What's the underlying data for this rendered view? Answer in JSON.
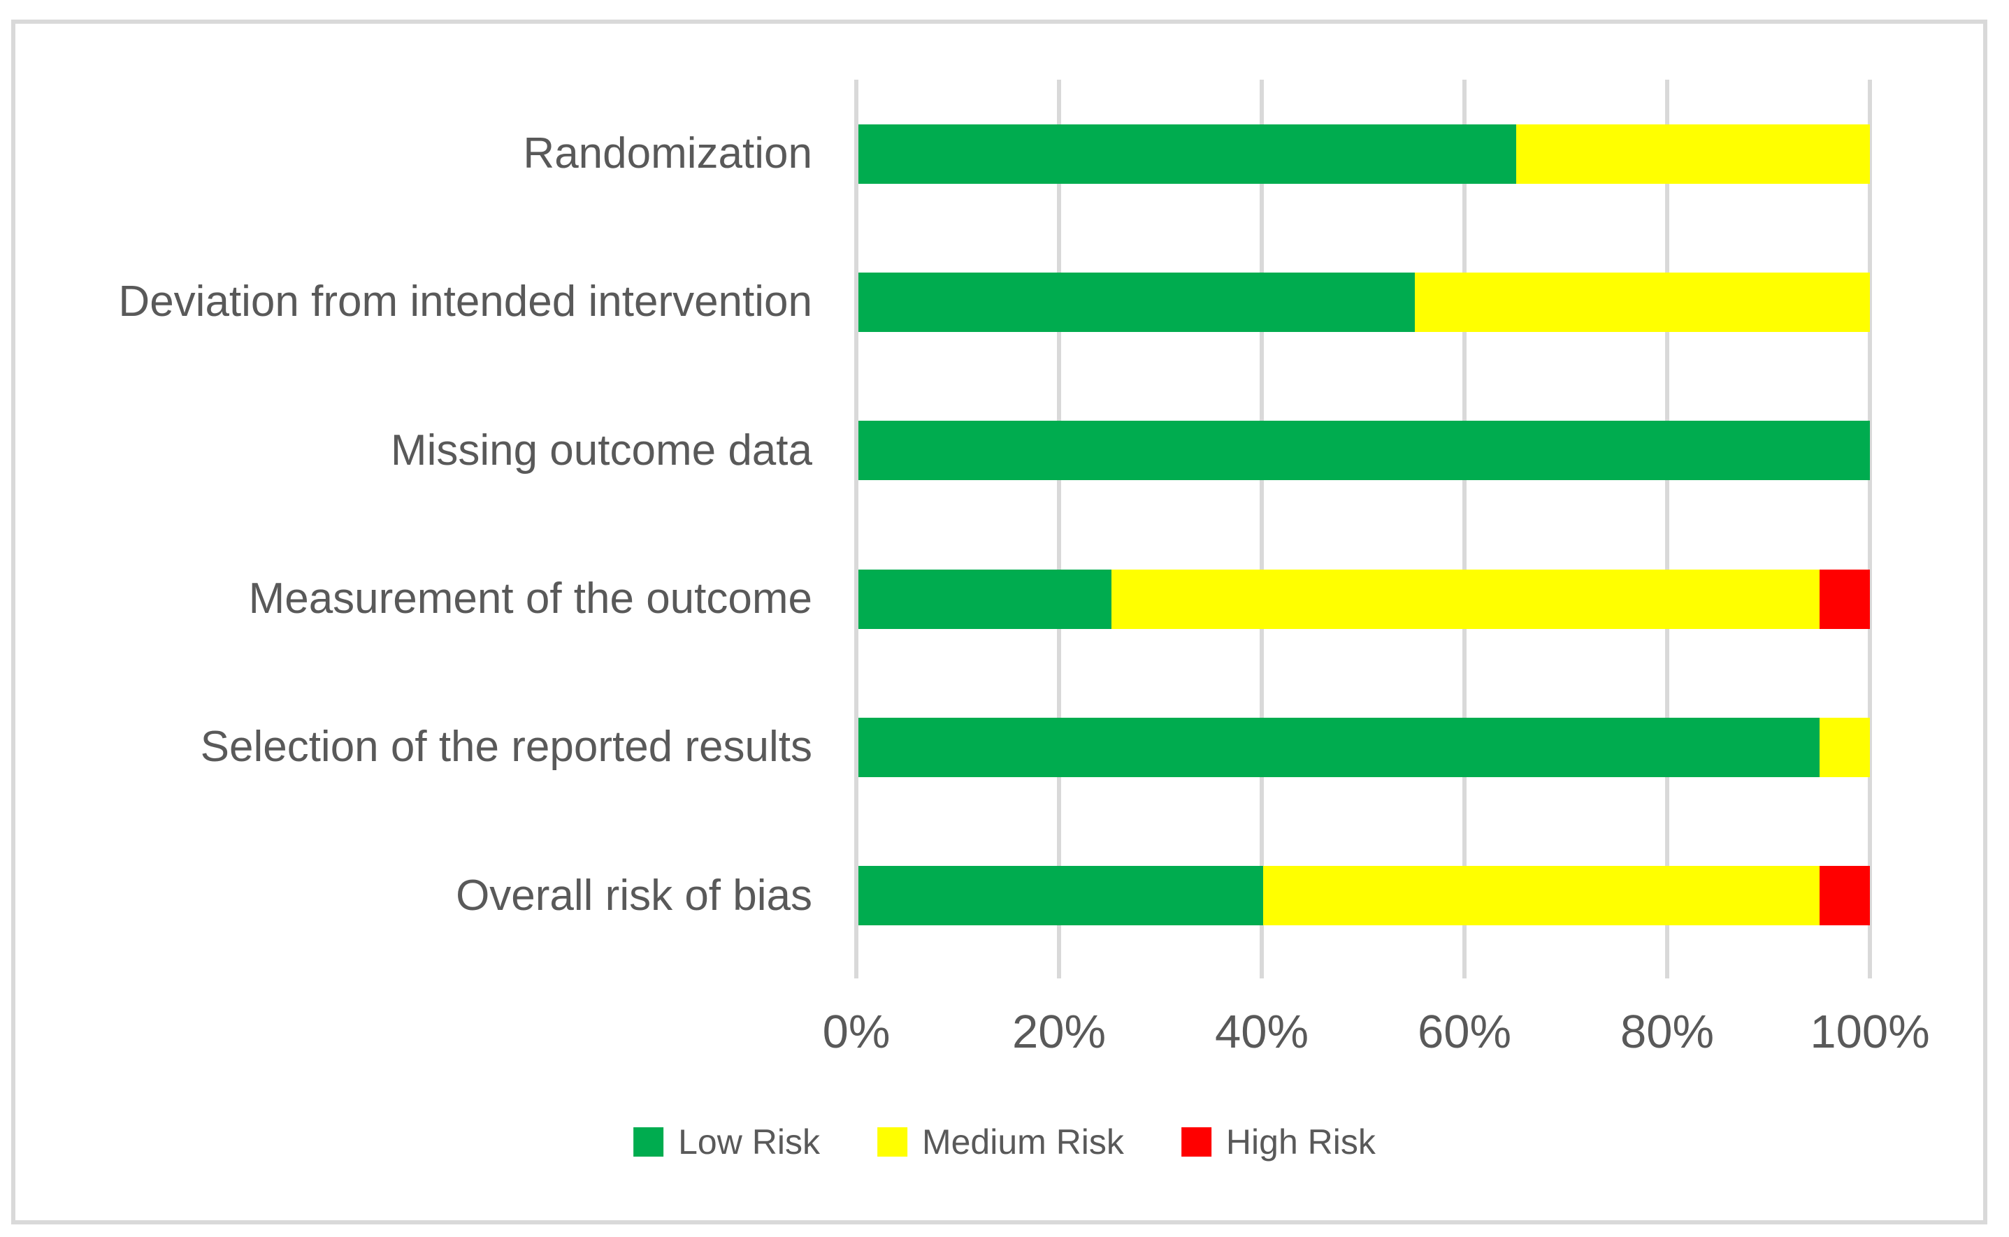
{
  "figure": {
    "background": "#ffffff",
    "frame_color": "#d9d9d9"
  },
  "chart_data": {
    "type": "bar",
    "orientation": "horizontal",
    "stacked": true,
    "title": "",
    "xlabel": "",
    "ylabel": "",
    "categories": [
      "Randomization",
      "Deviation from intended intervention",
      "Missing outcome data",
      "Measurement of the outcome",
      "Selection of the reported results",
      "Overall risk of bias"
    ],
    "series": [
      {
        "name": "Low Risk",
        "color": "#00ac4f",
        "values": [
          65,
          55,
          100,
          25,
          95,
          40
        ]
      },
      {
        "name": "Medium Risk",
        "color": "#ffff00",
        "values": [
          35,
          45,
          0,
          70,
          5,
          55
        ]
      },
      {
        "name": "High Risk",
        "color": "#ff0000",
        "values": [
          0,
          0,
          0,
          5,
          0,
          5
        ]
      }
    ],
    "x_ticks": [
      "0%",
      "20%",
      "40%",
      "60%",
      "80%",
      "100%"
    ],
    "xlim": [
      0,
      100
    ],
    "grid": true,
    "gridline_color": "#d9d9d9",
    "label_color": "#595959",
    "legend_position": "bottom"
  }
}
